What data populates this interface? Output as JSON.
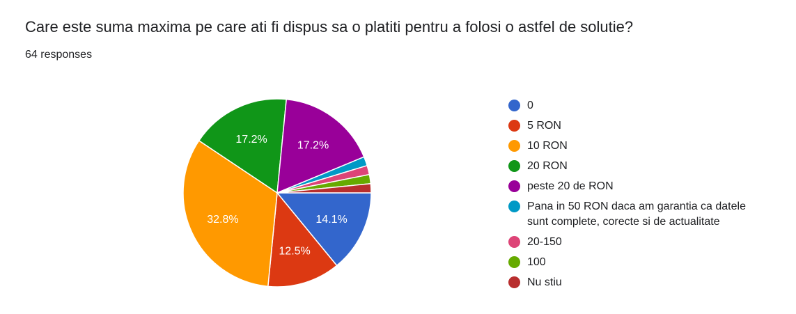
{
  "question": {
    "title": "Care este suma maxima pe care ati fi dispus sa o platiti pentru a folosi o astfel de solutie?",
    "responses": "64 responses"
  },
  "chart_data": {
    "type": "pie",
    "title": "Care este suma maxima pe care ati fi dispus sa o platiti pentru a folosi o astfel de solutie?",
    "total_responses": 64,
    "categories": [
      "0",
      "5 RON",
      "10 RON",
      "20 RON",
      "peste 20 de RON",
      "Pana in 50 RON daca am garantia ca datele sunt complete, corecte si de actualitate",
      "20-150",
      "100",
      "Nu stiu"
    ],
    "values": [
      9,
      8,
      21,
      11,
      11,
      1,
      1,
      1,
      1
    ],
    "percent_labels": [
      "14.1%",
      "12.5%",
      "32.8%",
      "17.2%",
      "17.2%",
      "",
      "",
      "",
      ""
    ],
    "colors": [
      "#3366cc",
      "#dc3912",
      "#ff9900",
      "#109618",
      "#990099",
      "#0099c6",
      "#dd4477",
      "#66aa00",
      "#b82e2e"
    ],
    "legend_position": "right"
  }
}
